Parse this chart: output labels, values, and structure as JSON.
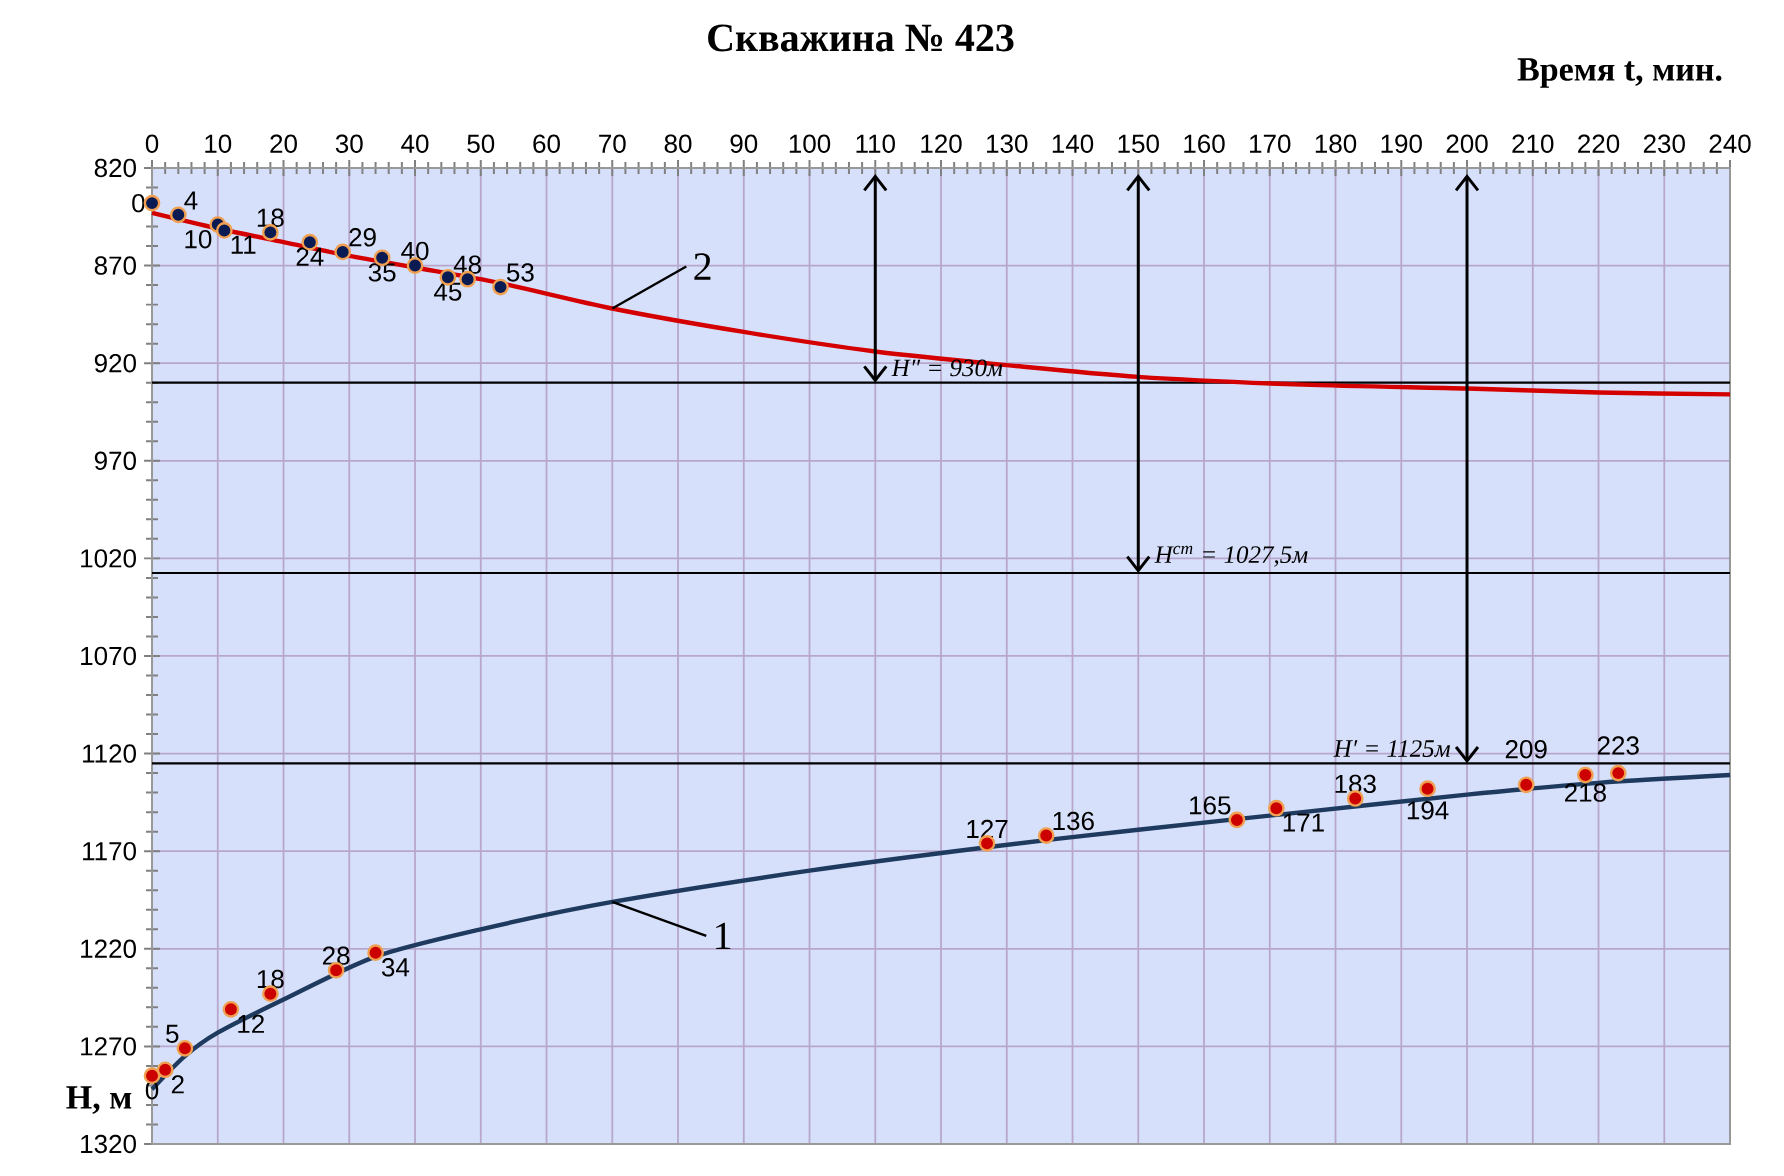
{
  "chart_data": {
    "type": "line",
    "title": "Скважина № 423",
    "xlabel": "Время  t,  мин.",
    "ylabel": "H, м",
    "xlim": [
      0,
      240
    ],
    "xticks": [
      0,
      10,
      20,
      30,
      40,
      50,
      60,
      70,
      80,
      90,
      100,
      110,
      120,
      130,
      140,
      150,
      160,
      170,
      180,
      190,
      200,
      210,
      220,
      230,
      240
    ],
    "ylim": [
      1320,
      820
    ],
    "yticks": [
      820,
      870,
      920,
      970,
      1020,
      1070,
      1120,
      1170,
      1220,
      1270,
      1320
    ],
    "grid": true,
    "series": [
      {
        "name": "2",
        "color": "#d40000",
        "x": [
          0,
          10,
          20,
          30,
          40,
          53,
          70,
          90,
          110,
          130,
          150,
          175,
          200,
          220,
          240
        ],
        "values": [
          843,
          851,
          858,
          865,
          871,
          879,
          892,
          904,
          914,
          921,
          927,
          931,
          933,
          935,
          936
        ]
      },
      {
        "name": "1",
        "color": "#1f3a5f",
        "x": [
          0,
          5,
          10,
          20,
          34,
          50,
          70,
          100,
          127,
          150,
          175,
          200,
          220,
          240
        ],
        "values": [
          1292,
          1275,
          1263,
          1246,
          1224,
          1210,
          1196,
          1180,
          1168,
          1159,
          1150,
          1141,
          1135,
          1131
        ]
      },
      {
        "type": "scatter",
        "marker": "circle",
        "color": "#0a1a52",
        "x": [
          0,
          4,
          10,
          11,
          18,
          24,
          29,
          35,
          40,
          45,
          48,
          53
        ],
        "values": [
          838,
          844,
          849,
          852,
          853,
          858,
          863,
          866,
          870,
          876,
          877,
          881
        ]
      },
      {
        "type": "scatter",
        "marker": "circle",
        "color": "#cc0000",
        "x": [
          0,
          2,
          5,
          12,
          18,
          28,
          34,
          127,
          136,
          165,
          171,
          183,
          194,
          209,
          218,
          223
        ],
        "values": [
          1285,
          1282,
          1271,
          1251,
          1243,
          1231,
          1222,
          1166,
          1162,
          1154,
          1148,
          1143,
          1138,
          1136,
          1131,
          1130
        ]
      }
    ],
    "ref_lines": [
      {
        "axis": "y",
        "value": 930,
        "color": "#000000"
      },
      {
        "axis": "y",
        "value": 1027.5,
        "color": "#000000"
      },
      {
        "axis": "y",
        "value": 1125,
        "color": "#000000"
      }
    ],
    "annotations": [
      {
        "text": "H″ = 930м",
        "x": 110,
        "y": 930
      },
      {
        "text": "H$^{ст}$ = 1027,5м",
        "x": 150,
        "y": 1027.5
      },
      {
        "text": "H′ = 1125м",
        "x": 200,
        "y": 1125
      },
      {
        "text": "0",
        "x": 0,
        "y": 838
      },
      {
        "text": "4",
        "x": 4,
        "y": 844
      },
      {
        "text": "10",
        "x": 10,
        "y": 849
      },
      {
        "text": "11",
        "x": 11,
        "y": 852
      },
      {
        "text": "18",
        "x": 18,
        "y": 853
      },
      {
        "text": "24",
        "x": 24,
        "y": 858
      },
      {
        "text": "29",
        "x": 29,
        "y": 863
      },
      {
        "text": "35",
        "x": 35,
        "y": 866
      },
      {
        "text": "40",
        "x": 40,
        "y": 870
      },
      {
        "text": "45",
        "x": 45,
        "y": 876
      },
      {
        "text": "48",
        "x": 48,
        "y": 877
      },
      {
        "text": "53",
        "x": 53,
        "y": 881
      },
      {
        "text": "0",
        "x": 0,
        "y": 1285
      },
      {
        "text": "2",
        "x": 2,
        "y": 1282
      },
      {
        "text": "5",
        "x": 5,
        "y": 1271
      },
      {
        "text": "12",
        "x": 12,
        "y": 1251
      },
      {
        "text": "18",
        "x": 18,
        "y": 1243
      },
      {
        "text": "28",
        "x": 28,
        "y": 1231
      },
      {
        "text": "34",
        "x": 34,
        "y": 1222
      },
      {
        "text": "127",
        "x": 127,
        "y": 1166
      },
      {
        "text": "136",
        "x": 136,
        "y": 1162
      },
      {
        "text": "165",
        "x": 165,
        "y": 1154
      },
      {
        "text": "171",
        "x": 171,
        "y": 1148
      },
      {
        "text": "183",
        "x": 183,
        "y": 1143
      },
      {
        "text": "194",
        "x": 194,
        "y": 1138
      },
      {
        "text": "209",
        "x": 209,
        "y": 1136
      },
      {
        "text": "218",
        "x": 218,
        "y": 1131
      },
      {
        "text": "223",
        "x": 223,
        "y": 1130
      }
    ]
  }
}
